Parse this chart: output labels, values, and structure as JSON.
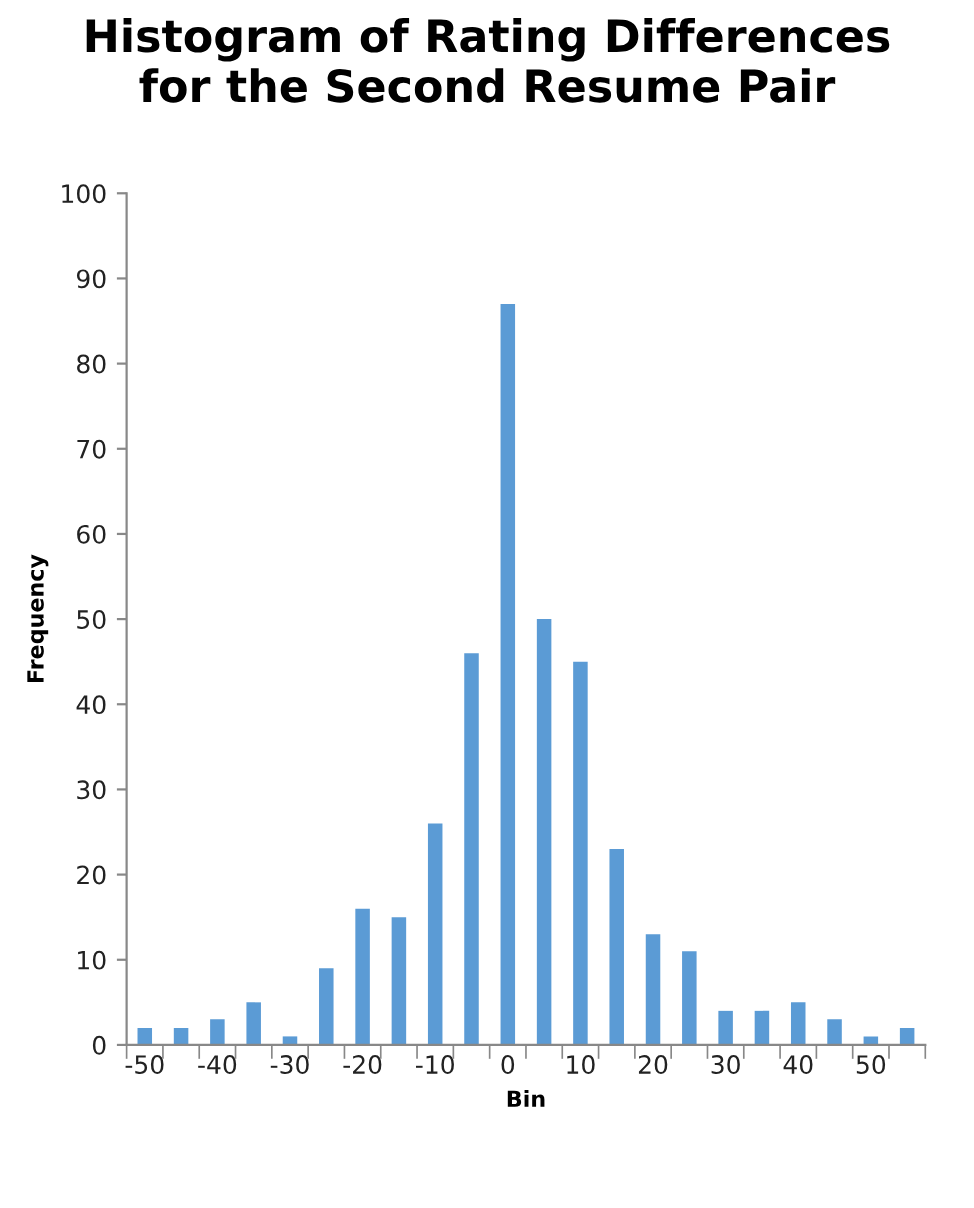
{
  "chart_data": {
    "type": "bar",
    "title": "Histogram of Rating Differences\nfor the Second Resume Pair",
    "xlabel": "Bin",
    "ylabel": "Frequency",
    "categories": [
      "-50",
      null,
      "-40",
      null,
      "-30",
      null,
      "-20",
      null,
      "-10",
      null,
      "0",
      null,
      "10",
      null,
      "20",
      null,
      "30",
      null,
      "40",
      null,
      "50",
      null
    ],
    "values": [
      2,
      2,
      3,
      5,
      1,
      9,
      16,
      15,
      26,
      46,
      87,
      50,
      45,
      23,
      13,
      11,
      4,
      4,
      5,
      3,
      1,
      2
    ],
    "color": "#5b9bd5",
    "ylim": [
      0,
      100
    ],
    "yticks": [
      0,
      10,
      20,
      30,
      40,
      50,
      60,
      70,
      80,
      90,
      100
    ],
    "grid": false,
    "legend": false
  }
}
